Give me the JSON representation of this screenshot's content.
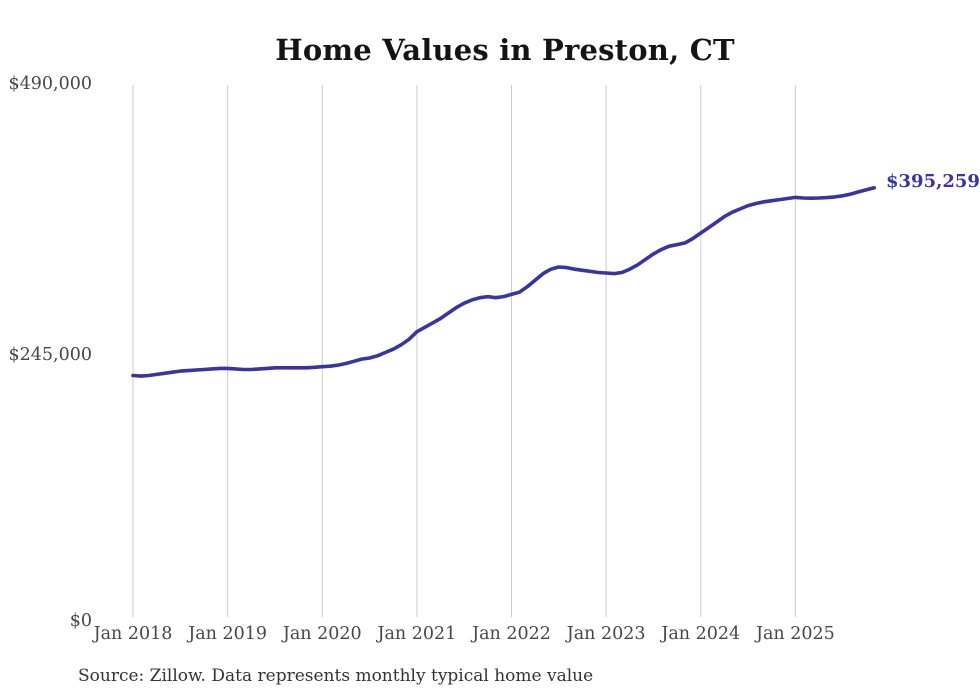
{
  "title": "Home Values in Preston, CT",
  "source_note": "Source: Zillow. Data represents monthly typical home value",
  "colors": {
    "line": "#3a33a3",
    "grid": "#cccccc",
    "title_text": "#141414",
    "axis_text": "#474747",
    "source_text": "#333333",
    "background": "#ffffff"
  },
  "chart_data": {
    "type": "line",
    "title": "Home Values in Preston, CT",
    "xlabel": "",
    "ylabel": "",
    "x_tick_labels": [
      "Jan 2018",
      "Jan 2019",
      "Jan 2020",
      "Jan 2021",
      "Jan 2022",
      "Jan 2023",
      "Jan 2024",
      "Jan 2025"
    ],
    "y_tick_labels": [
      "$490,000",
      "$245,000",
      "$0"
    ],
    "y_ticks": [
      490000,
      245000,
      0
    ],
    "ylim": [
      0,
      490000
    ],
    "grid": "vertical-only",
    "legend": "none",
    "x_monthly_from": "Jan 2018",
    "x_monthly_to": "Nov 2025",
    "last_value_label": "$395,259",
    "last_value": 395259,
    "series": [
      {
        "name": "Monthly typical home value",
        "values": [
          224000,
          223500,
          224000,
          225000,
          226000,
          227000,
          228000,
          228500,
          229000,
          229500,
          230000,
          230500,
          230500,
          230000,
          229500,
          229500,
          230000,
          230500,
          231000,
          231000,
          231000,
          231000,
          231000,
          231500,
          232000,
          232500,
          233500,
          235000,
          237000,
          239000,
          240000,
          242000,
          245000,
          248000,
          252000,
          257000,
          264000,
          268000,
          272000,
          276000,
          281000,
          286000,
          290000,
          293000,
          295000,
          296000,
          295000,
          296000,
          298000,
          300000,
          305000,
          311000,
          317000,
          321000,
          323000,
          322500,
          321000,
          320000,
          319000,
          318000,
          317500,
          317000,
          318000,
          321000,
          325000,
          330000,
          335000,
          339000,
          342000,
          343500,
          345000,
          349000,
          354000,
          359000,
          364000,
          369000,
          373000,
          376000,
          379000,
          381000,
          382500,
          383500,
          384500,
          385500,
          386500,
          386000,
          385800,
          386000,
          386300,
          387000,
          388000,
          389500,
          391500,
          393500,
          395259
        ]
      }
    ]
  }
}
